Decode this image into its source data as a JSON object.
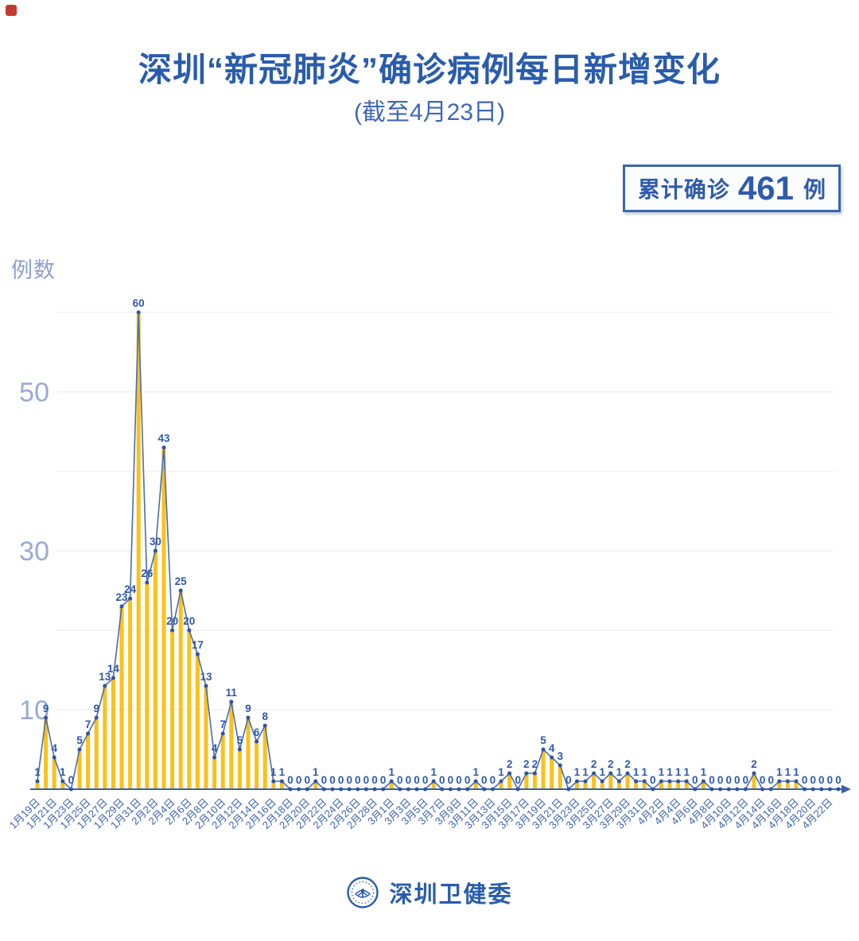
{
  "corner_mark": {
    "color": "#c53a2e"
  },
  "title": "深圳“新冠肺炎”确诊病例每日新增变化",
  "subtitle": "(截至4月23日)",
  "summary_badge": {
    "prefix": "累计确诊",
    "value": "461",
    "suffix": "例"
  },
  "y_axis_title": "例数",
  "footer": {
    "brand": "深圳卫健委",
    "logo": "shenzhen-health-commission-logo"
  },
  "colors": {
    "title_blue": "#2a5cab",
    "bar_yellow": "#fac219",
    "line_blue": "#4a6cb3",
    "marker_blue": "#2e55a6",
    "value_label_blue": "#2e59ab",
    "axis_blue": "#3a5fa8",
    "date_label_blue": "#3c63ae",
    "ytick_gray_blue": "#9aa9d6",
    "gridline": "#e9eaf0",
    "badge_border": "#3a66ad"
  },
  "chart_data": {
    "type": "bar",
    "combo": "bar+line+point",
    "title": "深圳“新冠肺炎”确诊病例每日新增变化 (截至4月23日)",
    "xlabel": "",
    "ylabel": "例数",
    "ylim": [
      0,
      62
    ],
    "yticks_labeled": [
      10,
      30,
      50
    ],
    "gridline_values": [
      10,
      20,
      30,
      40,
      50,
      60
    ],
    "grid": "on",
    "legend": "none",
    "x_label_interval": 2,
    "total": 461,
    "x": [
      "1月19日",
      "1月20日",
      "1月21日",
      "1月22日",
      "1月23日",
      "1月24日",
      "1月25日",
      "1月26日",
      "1月27日",
      "1月28日",
      "1月29日",
      "1月30日",
      "1月31日",
      "2月1日",
      "2月2日",
      "2月3日",
      "2月4日",
      "2月5日",
      "2月6日",
      "2月7日",
      "2月8日",
      "2月9日",
      "2月10日",
      "2月11日",
      "2月12日",
      "2月13日",
      "2月14日",
      "2月15日",
      "2月16日",
      "2月17日",
      "2月18日",
      "2月19日",
      "2月20日",
      "2月21日",
      "2月22日",
      "2月23日",
      "2月24日",
      "2月25日",
      "2月26日",
      "2月27日",
      "2月28日",
      "2月29日",
      "3月1日",
      "3月2日",
      "3月3日",
      "3月4日",
      "3月5日",
      "3月6日",
      "3月7日",
      "3月8日",
      "3月9日",
      "3月10日",
      "3月11日",
      "3月12日",
      "3月13日",
      "3月14日",
      "3月15日",
      "3月16日",
      "3月17日",
      "3月18日",
      "3月19日",
      "3月20日",
      "3月21日",
      "3月22日",
      "3月23日",
      "3月24日",
      "3月25日",
      "3月26日",
      "3月27日",
      "3月28日",
      "3月29日",
      "3月30日",
      "3月31日",
      "4月1日",
      "4月2日",
      "4月3日",
      "4月4日",
      "4月5日",
      "4月6日",
      "4月7日",
      "4月8日",
      "4月9日",
      "4月10日",
      "4月11日",
      "4月12日",
      "4月13日",
      "4月14日",
      "4月15日",
      "4月16日",
      "4月17日",
      "4月18日",
      "4月19日",
      "4月20日",
      "4月21日",
      "4月22日",
      "4月23日"
    ],
    "values": [
      1,
      9,
      4,
      1,
      0,
      5,
      7,
      9,
      13,
      14,
      23,
      24,
      60,
      26,
      30,
      43,
      20,
      25,
      20,
      17,
      13,
      4,
      7,
      11,
      5,
      9,
      6,
      8,
      1,
      1,
      0,
      0,
      0,
      1,
      0,
      0,
      0,
      0,
      0,
      0,
      0,
      0,
      1,
      0,
      0,
      0,
      0,
      1,
      0,
      0,
      0,
      0,
      1,
      0,
      0,
      1,
      2,
      0,
      2,
      2,
      5,
      4,
      3,
      0,
      1,
      1,
      2,
      1,
      2,
      1,
      2,
      1,
      1,
      0,
      1,
      1,
      1,
      1,
      0,
      1,
      0,
      0,
      0,
      0,
      0,
      2,
      0,
      0,
      1,
      1,
      1,
      0,
      0,
      0,
      0,
      0
    ]
  }
}
